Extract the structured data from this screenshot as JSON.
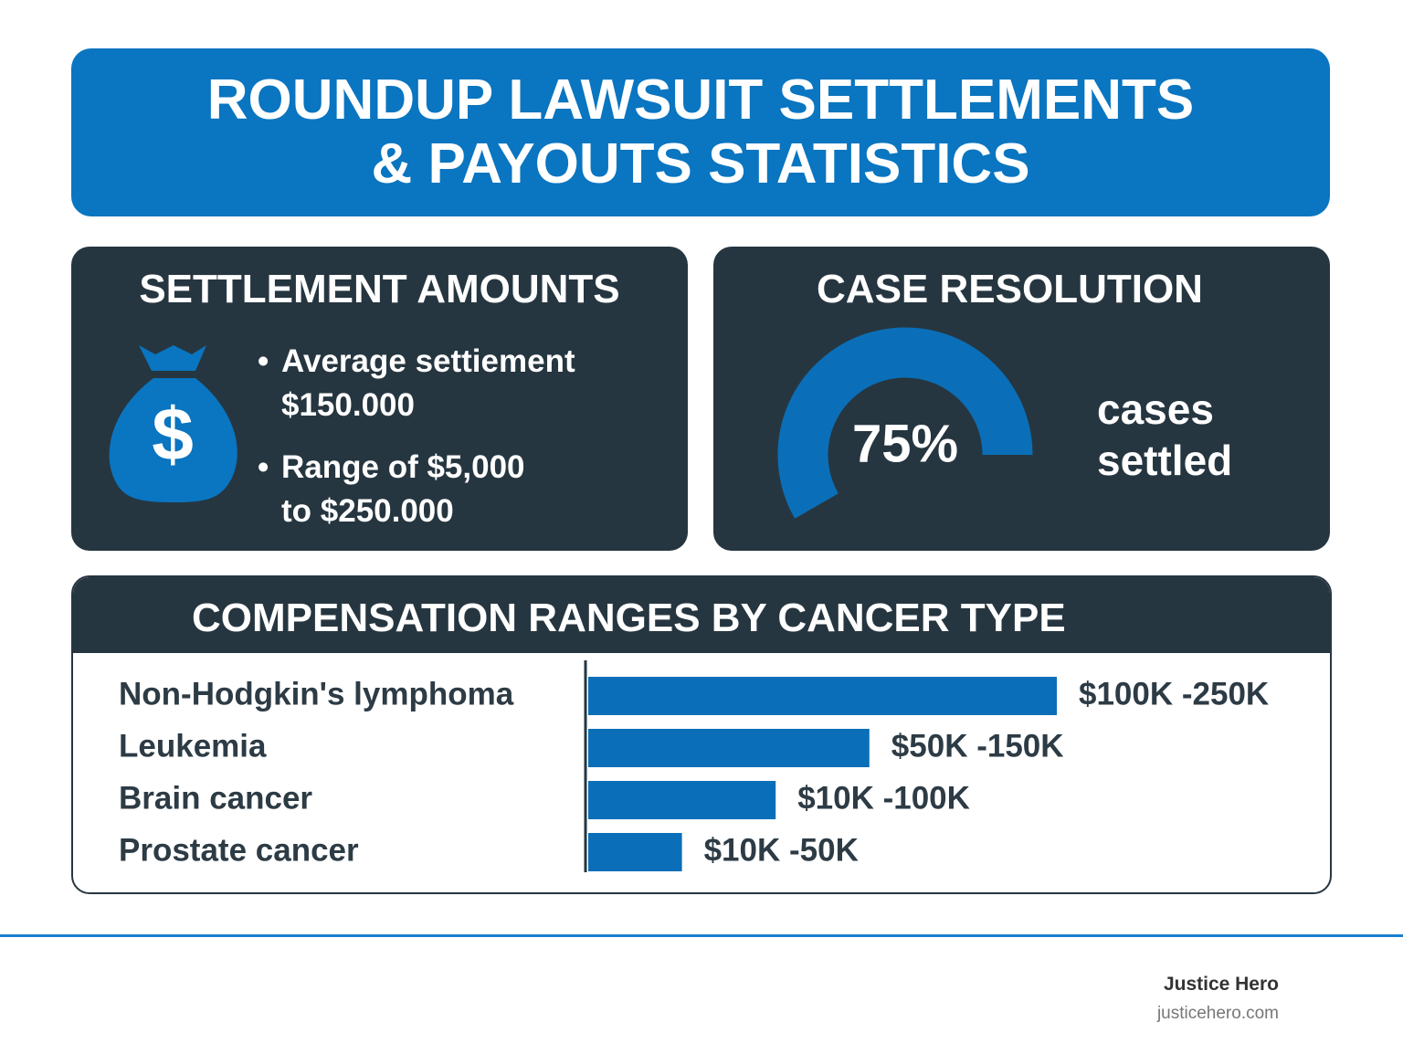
{
  "header": {
    "title": "ROUNDUP LAWSUIT SETTLEMENTS & PAYOUTS STATISTICS"
  },
  "settlement_amounts": {
    "title": "SETTLEMENT AMOUNTS",
    "icon_label": "$",
    "items": [
      [
        "Average settiement",
        "$150.000"
      ],
      [
        "Range of $5,000",
        "to $250.000"
      ]
    ]
  },
  "case_resolution": {
    "title": "CASE RESOLUTION",
    "value": 75,
    "value_label": "75%",
    "caption": [
      "cases",
      "settled"
    ],
    "color": "#0a6fb8"
  },
  "chart_data": {
    "type": "bar",
    "orientation": "horizontal",
    "title": "COMPENSATION RANGES BY CANCER TYPE",
    "categories": [
      "Non-Hodgkin's lymphoma",
      "Leukemia",
      "Brain cancer",
      "Prostate cancer"
    ],
    "values": [
      250000,
      150000,
      100000,
      50000
    ],
    "value_labels": [
      "$100K -250K",
      "$50K -150K",
      "$10K -100K",
      "$10K -50K"
    ],
    "color": "#0a6fb8"
  },
  "footer": {
    "brand": "Justice Hero",
    "url": "justicehero.com"
  }
}
